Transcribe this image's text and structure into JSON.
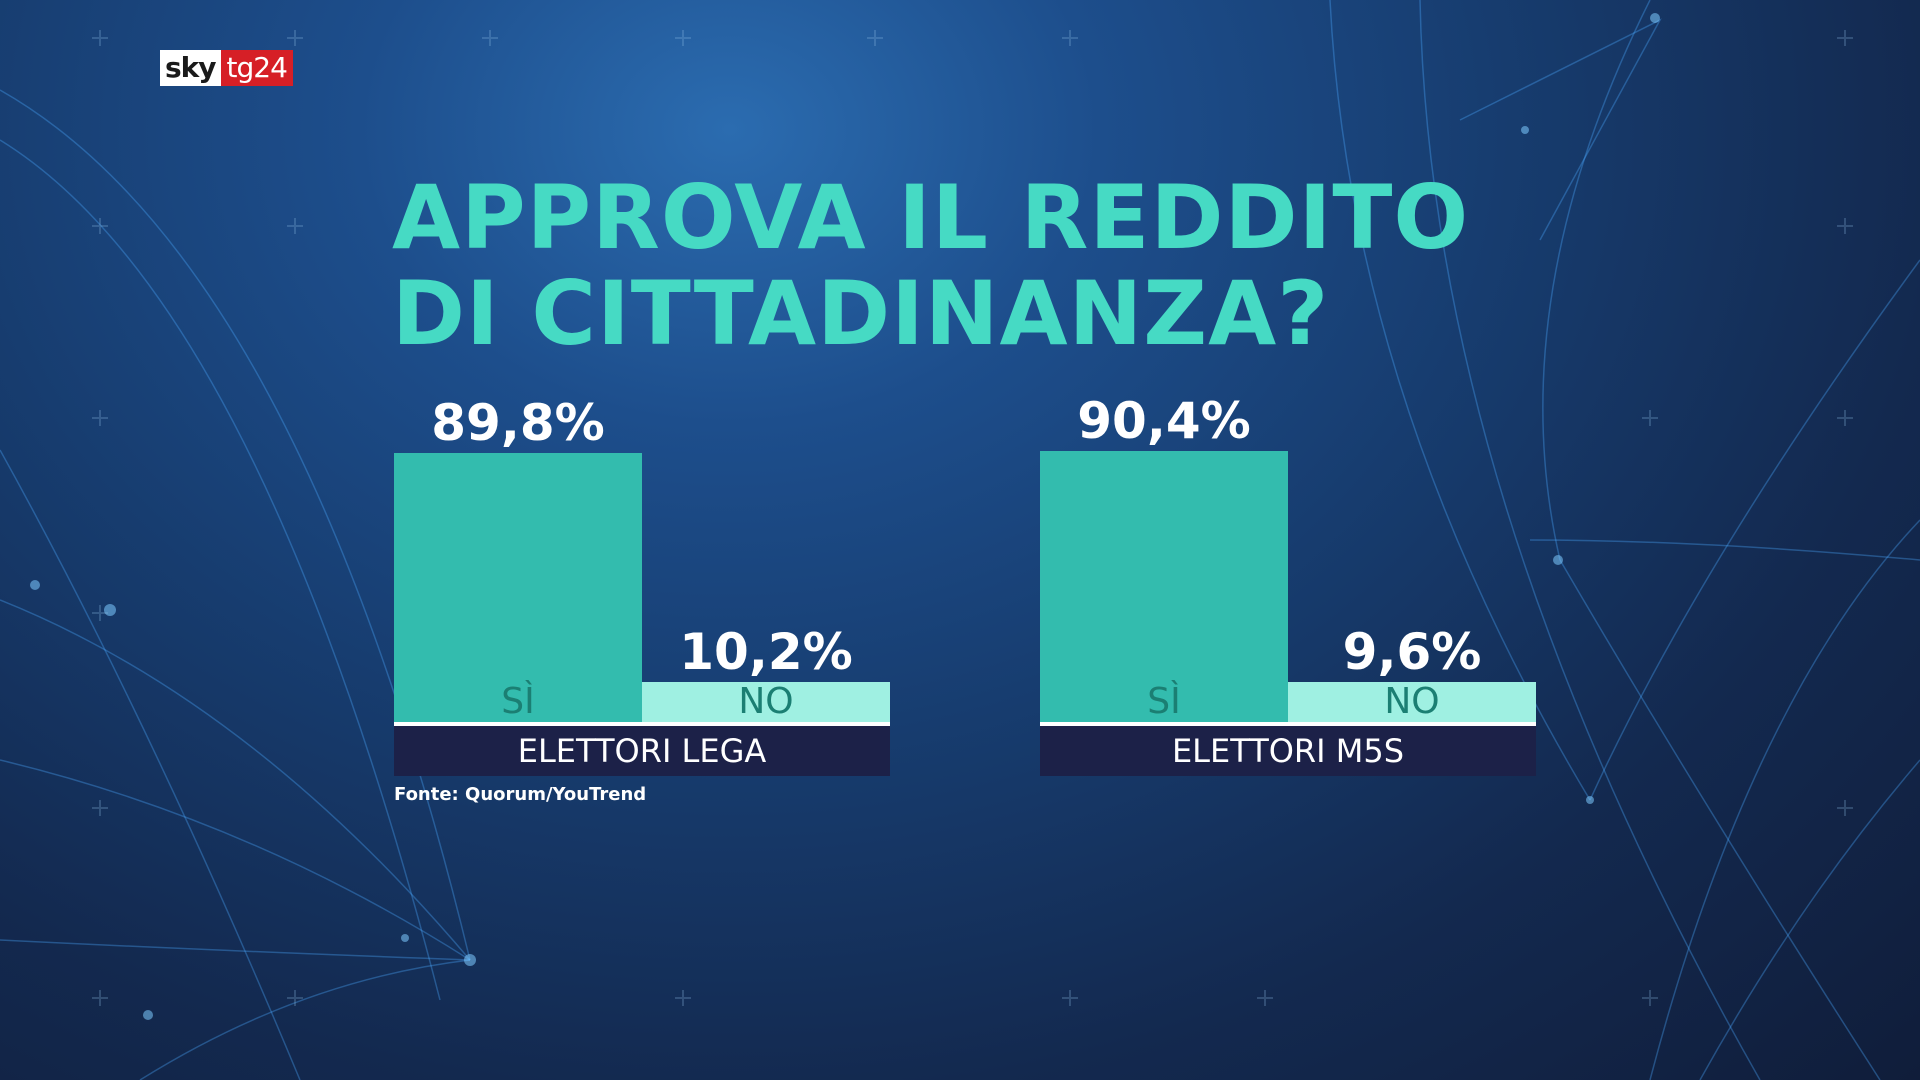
{
  "logo": {
    "sky": "sky",
    "tg": "tg24"
  },
  "title_lines": [
    "APPROVA IL REDDITO",
    "DI CITTADINANZA?"
  ],
  "source": "Fonte: Quorum/YouTrend",
  "colors": {
    "title": "#46dac4",
    "yes_bar": "#33bcae",
    "no_bar": "#9ff0e2",
    "group_label_bg": "#1c2148"
  },
  "chart_data": [
    {
      "type": "bar",
      "group": "ELETTORI LEGA",
      "categories": [
        "SÌ",
        "NO"
      ],
      "values": [
        89.8,
        10.2
      ],
      "value_labels": [
        "89,8%",
        "10,2%"
      ],
      "ylim": [
        0,
        100
      ]
    },
    {
      "type": "bar",
      "group": "ELETTORI M5S",
      "categories": [
        "SÌ",
        "NO"
      ],
      "values": [
        90.4,
        9.6
      ],
      "value_labels": [
        "90,4%",
        "9,6%"
      ],
      "ylim": [
        0,
        100
      ]
    }
  ]
}
